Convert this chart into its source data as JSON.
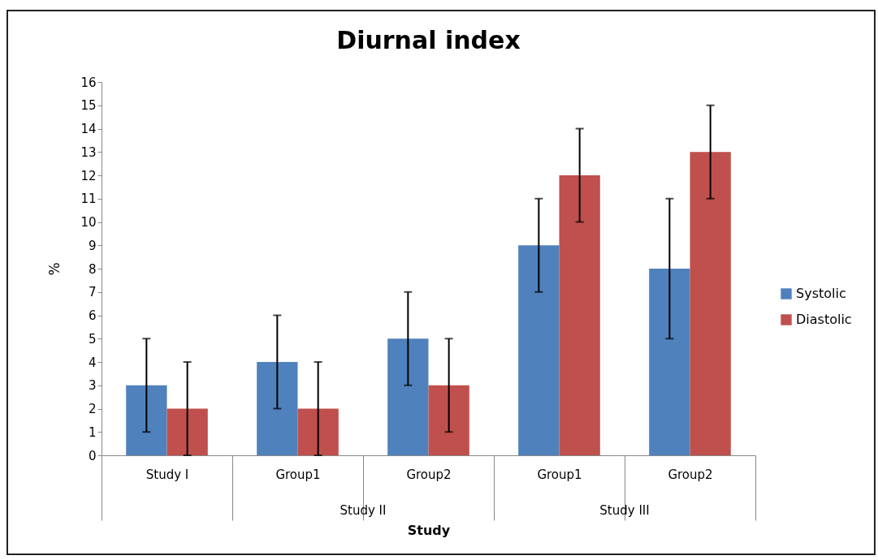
{
  "chart_data": {
    "type": "bar",
    "title": "Diurnal index",
    "xlabel": "Study",
    "ylabel": "%",
    "categories": [
      "Study I",
      "Group1",
      "Group2",
      "Group1",
      "Group2"
    ],
    "series": [
      {
        "name": "Systolic",
        "color": "#4f81bd",
        "values": [
          3,
          4,
          5,
          9,
          8
        ],
        "errors": [
          2,
          2,
          2,
          2,
          3
        ]
      },
      {
        "name": "Diastolic",
        "color": "#c0504d",
        "values": [
          2,
          2,
          3,
          12,
          13
        ],
        "errors": [
          2,
          2,
          2,
          2,
          2
        ]
      }
    ],
    "annotations": [
      "Study II",
      "Study III"
    ],
    "ylim": [
      0,
      16
    ],
    "yticks": [
      0,
      1,
      2,
      3,
      4,
      5,
      6,
      7,
      8,
      9,
      10,
      11,
      12,
      13,
      14,
      15,
      16
    ],
    "grid": false,
    "legend": "right"
  }
}
